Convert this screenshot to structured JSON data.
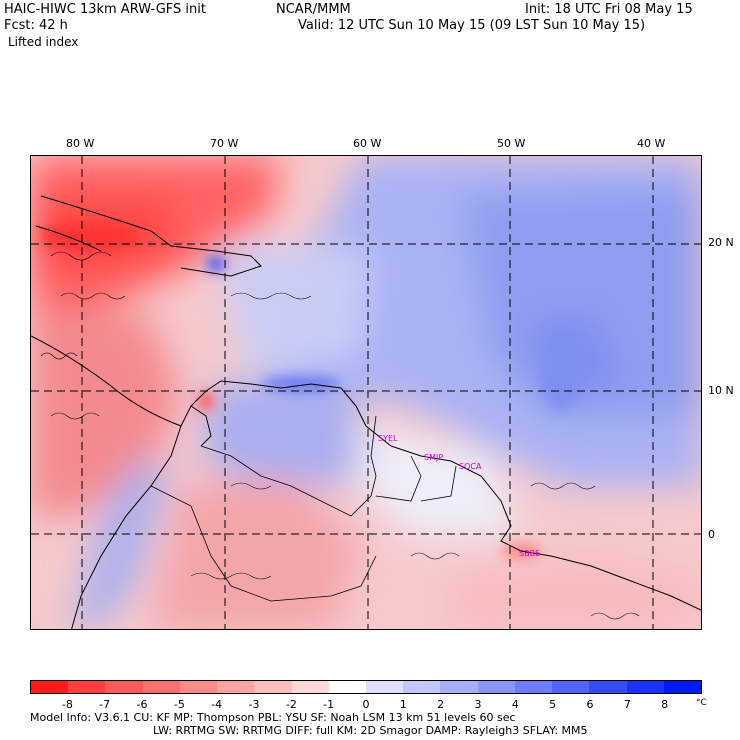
{
  "header": {
    "model_title": "HAIC-HIWC 13km ARW-GFS init",
    "org": "NCAR/MMM",
    "init": "Init: 18 UTC Fri 08 May 15",
    "fcst": "Fcst:   42 h",
    "valid": "Valid: 12 UTC Sun 10 May 15 (09 LST Sun 10 May 15)",
    "field": "Lifted index"
  },
  "map": {
    "lon_labels": [
      "80 W",
      "70 W",
      "60 W",
      "50 W",
      "40 W"
    ],
    "lat_labels": [
      "20 N",
      "10 N",
      "0"
    ],
    "stations": [
      "SYEL",
      "SMJP",
      "SOCA",
      "SBBE"
    ]
  },
  "colorbar": {
    "labels": [
      "-8",
      "-7",
      "-6",
      "-5",
      "-4",
      "-3",
      "-2",
      "-1",
      "0",
      "1",
      "2",
      "3",
      "4",
      "5",
      "6",
      "7",
      "8"
    ],
    "unit": "°C",
    "colors": [
      "#ff1a1a",
      "#ff3d3d",
      "#ff5959",
      "#ff7070",
      "#ff8a8a",
      "#ffa3a3",
      "#ffbcbc",
      "#ffd7d7",
      "#ffffff",
      "#dde0ff",
      "#c2c8ff",
      "#a6afff",
      "#8a96ff",
      "#6e7dff",
      "#5264ff",
      "#364bff",
      "#1a32ff",
      "#0019ff"
    ]
  },
  "footer": {
    "line1": "Model Info: V3.6.1     CU: KF       MP: Thompson     PBL: YSU       SF: Noah LSM     13 km   51 levels   60 sec",
    "line2": "LW: RRTMG    SW: RRTMG  DIFF: full    KM: 2D Smagor DAMP: Rayleigh3   SFLAY: MM5"
  }
}
